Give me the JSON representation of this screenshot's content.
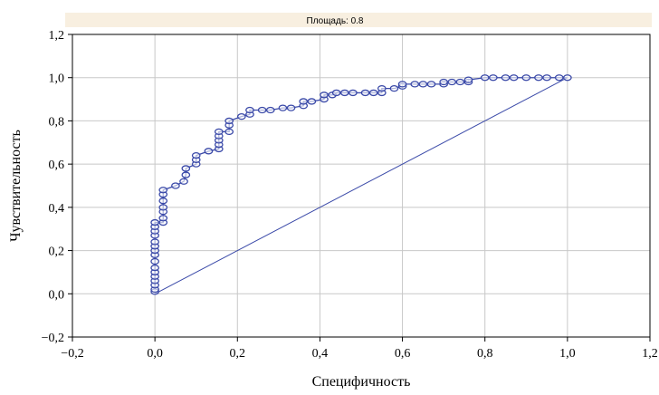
{
  "chart_data": {
    "type": "line",
    "title": "Площадь: 0.8",
    "xlabel": "Специфичность",
    "ylabel": "Чувствительность",
    "xlim": [
      -0.2,
      1.2
    ],
    "ylim": [
      -0.2,
      1.2
    ],
    "x_ticks": [
      "−0,2",
      "0,0",
      "0,2",
      "0,4",
      "0,6",
      "0,8",
      "1,0",
      "1,2"
    ],
    "y_ticks": [
      "−0,2",
      "0,0",
      "0,2",
      "0,4",
      "0,6",
      "0,8",
      "1,0",
      "1,2"
    ],
    "x_tick_values": [
      -0.2,
      0,
      0.2,
      0.4,
      0.6,
      0.8,
      1.0,
      1.2
    ],
    "y_tick_values": [
      -0.2,
      0,
      0.2,
      0.4,
      0.6,
      0.8,
      1.0,
      1.2
    ],
    "grid": true,
    "colors": {
      "series": "#3a49a8",
      "banner": "#f8efe0",
      "grid": "#c8c8c8",
      "frame": "#000000"
    },
    "series": [
      {
        "points": [
          [
            0,
            0.01
          ],
          [
            0,
            0.02
          ],
          [
            0,
            0.04
          ],
          [
            0,
            0.06
          ],
          [
            0,
            0.08
          ],
          [
            0,
            0.1
          ],
          [
            0,
            0.12
          ],
          [
            0,
            0.15
          ],
          [
            0,
            0.18
          ],
          [
            0,
            0.2
          ],
          [
            0,
            0.22
          ],
          [
            0,
            0.24
          ],
          [
            0,
            0.27
          ],
          [
            0,
            0.29
          ],
          [
            0,
            0.31
          ],
          [
            0,
            0.33
          ],
          [
            0.02,
            0.33
          ],
          [
            0.02,
            0.35
          ],
          [
            0.02,
            0.38
          ],
          [
            0.02,
            0.4
          ],
          [
            0.02,
            0.43
          ],
          [
            0.02,
            0.46
          ],
          [
            0.02,
            0.48
          ],
          [
            0.05,
            0.5
          ],
          [
            0.07,
            0.52
          ],
          [
            0.075,
            0.55
          ],
          [
            0.075,
            0.58
          ],
          [
            0.1,
            0.6
          ],
          [
            0.1,
            0.62
          ],
          [
            0.1,
            0.64
          ],
          [
            0.13,
            0.66
          ],
          [
            0.155,
            0.67
          ],
          [
            0.155,
            0.69
          ],
          [
            0.155,
            0.71
          ],
          [
            0.155,
            0.73
          ],
          [
            0.155,
            0.75
          ],
          [
            0.18,
            0.75
          ],
          [
            0.18,
            0.78
          ],
          [
            0.18,
            0.8
          ],
          [
            0.21,
            0.82
          ],
          [
            0.23,
            0.83
          ],
          [
            0.23,
            0.85
          ],
          [
            0.26,
            0.85
          ],
          [
            0.28,
            0.85
          ],
          [
            0.31,
            0.86
          ],
          [
            0.33,
            0.86
          ],
          [
            0.36,
            0.87
          ],
          [
            0.36,
            0.89
          ],
          [
            0.38,
            0.89
          ],
          [
            0.41,
            0.9
          ],
          [
            0.41,
            0.92
          ],
          [
            0.43,
            0.92
          ],
          [
            0.44,
            0.93
          ],
          [
            0.46,
            0.93
          ],
          [
            0.48,
            0.93
          ],
          [
            0.51,
            0.93
          ],
          [
            0.53,
            0.93
          ],
          [
            0.55,
            0.93
          ],
          [
            0.55,
            0.95
          ],
          [
            0.58,
            0.95
          ],
          [
            0.6,
            0.96
          ],
          [
            0.6,
            0.97
          ],
          [
            0.63,
            0.97
          ],
          [
            0.65,
            0.97
          ],
          [
            0.67,
            0.97
          ],
          [
            0.7,
            0.97
          ],
          [
            0.7,
            0.98
          ],
          [
            0.72,
            0.98
          ],
          [
            0.74,
            0.98
          ],
          [
            0.76,
            0.98
          ],
          [
            0.76,
            0.99
          ],
          [
            0.8,
            1.0
          ],
          [
            0.82,
            1.0
          ],
          [
            0.85,
            1.0
          ],
          [
            0.87,
            1.0
          ],
          [
            0.9,
            1.0
          ],
          [
            0.93,
            1.0
          ],
          [
            0.95,
            1.0
          ],
          [
            0.98,
            1.0
          ],
          [
            1.0,
            1.0
          ]
        ]
      },
      {
        "points": [
          [
            0,
            0
          ],
          [
            1,
            1
          ]
        ]
      }
    ]
  }
}
